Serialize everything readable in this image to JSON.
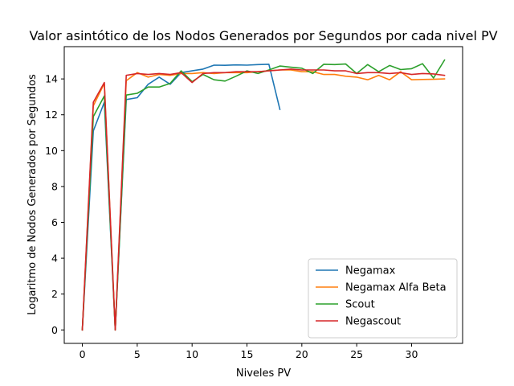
{
  "chart_data": {
    "type": "line",
    "title": "Valor asintótico de los Nodos Generados por Segundos por cada nivel PV",
    "xlabel": "Niveles PV",
    "ylabel": "Logaritmo de Nodos Generados por Segundos",
    "xlim": [
      -1.65,
      34.65
    ],
    "ylim": [
      -0.75,
      15.8
    ],
    "xticks": [
      0,
      5,
      10,
      15,
      20,
      25,
      30
    ],
    "yticks": [
      0,
      2,
      4,
      6,
      8,
      10,
      12,
      14
    ],
    "grid": false,
    "legend_position": "lower-right",
    "series": [
      {
        "name": "Negamax",
        "color": "#1f77b4",
        "x": [
          0,
          1,
          2,
          3,
          4,
          5,
          6,
          7,
          8,
          9,
          10,
          11,
          12,
          13,
          14,
          15,
          16,
          17,
          18
        ],
        "y": [
          0,
          11.1,
          12.7,
          0,
          12.85,
          12.95,
          13.7,
          14.1,
          13.7,
          14.35,
          14.45,
          14.55,
          14.77,
          14.76,
          14.78,
          14.77,
          14.8,
          14.82,
          12.3
        ]
      },
      {
        "name": "Negamax Alfa Beta",
        "color": "#ff7f0e",
        "x": [
          0,
          1,
          2,
          3,
          4,
          5,
          6,
          7,
          8,
          9,
          10,
          11,
          12,
          13,
          14,
          15,
          16,
          17,
          18,
          19,
          20,
          21,
          22,
          23,
          24,
          25,
          26,
          27,
          28,
          29,
          30,
          31,
          32,
          33
        ],
        "y": [
          0,
          12.5,
          13.75,
          0,
          13.9,
          14.35,
          14.1,
          14.25,
          14.2,
          14.3,
          14.3,
          14.35,
          14.3,
          14.35,
          14.35,
          14.35,
          14.4,
          14.45,
          14.5,
          14.5,
          14.4,
          14.4,
          14.25,
          14.25,
          14.15,
          14.1,
          13.95,
          14.2,
          13.95,
          14.4,
          13.95,
          13.97,
          13.98,
          14
        ]
      },
      {
        "name": "Scout",
        "color": "#2ca02c",
        "x": [
          0,
          1,
          2,
          3,
          4,
          5,
          6,
          7,
          8,
          9,
          10,
          11,
          12,
          13,
          14,
          15,
          16,
          17,
          18,
          19,
          20,
          21,
          22,
          23,
          24,
          25,
          26,
          27,
          28,
          29,
          30,
          31,
          32,
          33
        ],
        "y": [
          0,
          11.9,
          13.05,
          0,
          13.1,
          13.2,
          13.55,
          13.55,
          13.75,
          14.45,
          13.85,
          14.25,
          13.95,
          13.88,
          14.15,
          14.45,
          14.3,
          14.5,
          14.72,
          14.65,
          14.6,
          14.3,
          14.82,
          14.8,
          14.83,
          14.3,
          14.8,
          14.4,
          14.75,
          14.52,
          14.57,
          14.85,
          14.05,
          15.05
        ]
      },
      {
        "name": "Negascout",
        "color": "#d62728",
        "x": [
          0,
          1,
          2,
          3,
          4,
          5,
          6,
          7,
          8,
          9,
          10,
          11,
          12,
          13,
          14,
          15,
          16,
          17,
          18,
          19,
          20,
          21,
          22,
          23,
          24,
          25,
          26,
          27,
          28,
          29,
          30,
          31,
          32,
          33
        ],
        "y": [
          0,
          12.7,
          13.8,
          0,
          14.2,
          14.3,
          14.25,
          14.3,
          14.25,
          14.35,
          13.8,
          14.3,
          14.35,
          14.35,
          14.4,
          14.4,
          14.4,
          14.45,
          14.5,
          14.55,
          14.5,
          14.5,
          14.5,
          14.45,
          14.45,
          14.3,
          14.35,
          14.35,
          14.3,
          14.35,
          14.25,
          14.3,
          14.28,
          14.2
        ]
      }
    ]
  }
}
